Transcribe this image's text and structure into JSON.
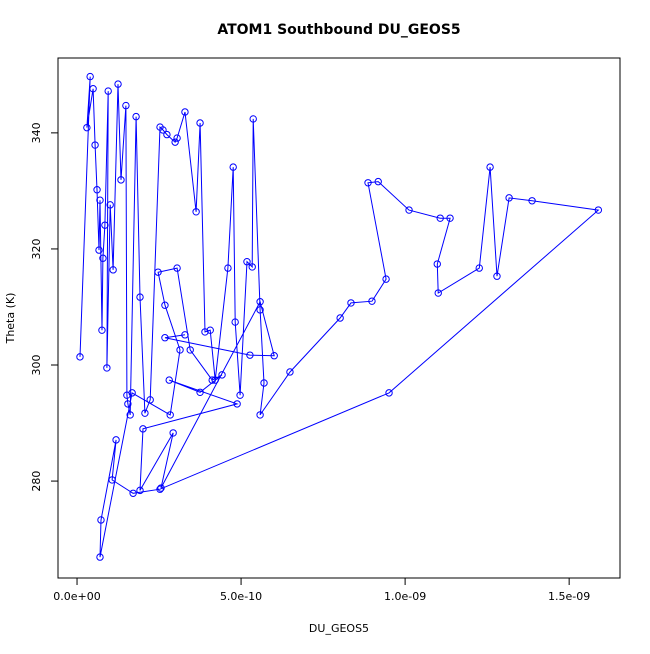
{
  "chart_data": {
    "type": "line",
    "title": "ATOM1 Southbound DU_GEOS5",
    "x_label": "DU_GEOS5",
    "y_label": "Theta (K)",
    "markers": "open-circle",
    "series": [
      {
        "color": "#0000ff",
        "x": [
          9e-12,
          4e-11,
          3e-11,
          4.9e-11,
          5.5e-11,
          6.1e-11,
          6.7e-11,
          7e-11,
          7.6e-11,
          7.9e-11,
          8.5e-11,
          9.5e-11,
          9.1e-11,
          1.01e-10,
          1.1e-10,
          1.25e-10,
          1.34e-10,
          1.49e-10,
          1.52e-10,
          1.55e-10,
          1.62e-10,
          1.8e-10,
          1.92e-10,
          2.07e-10,
          2.23e-10,
          2.53e-10,
          2.62e-10,
          2.74e-10,
          2.99e-10,
          3.05e-10,
          3.29e-10,
          3.63e-10,
          3.75e-10,
          3.9e-10,
          4.06e-10,
          4.21e-10,
          4.6e-10,
          4.76e-10,
          4.82e-10,
          4.97e-10,
          5.18e-10,
          5.34e-10,
          5.37e-10,
          5.58e-10,
          5.7e-10,
          5.58e-10,
          6.49e-10,
          8.02e-10,
          8.35e-10,
          8.99e-10,
          9.42e-10,
          8.87e-10,
          9.18e-10,
          1.012e-09,
          1.107e-09,
          1.137e-09,
          1.098e-09,
          1.101e-09,
          1.226e-09,
          1.259e-09,
          1.28e-09,
          1.317e-09,
          1.387e-09,
          1.589e-09,
          9.51e-10,
          2.53e-10,
          1.71e-10,
          1.07e-10,
          1.19e-10,
          7.3e-11,
          7e-11,
          1.68e-10,
          2.84e-10,
          3.14e-10,
          2.68e-10,
          2.47e-10,
          3.05e-10,
          3.45e-10,
          4.12e-10,
          4.42e-10,
          3.75e-10,
          2.81e-10,
          4.88e-10,
          2.01e-10,
          1.92e-10,
          2.93e-10,
          2.56e-10,
          5.58e-10,
          6.01e-10,
          5.27e-10,
          2.68e-10,
          3.29e-10
        ],
        "values": [
          301.4,
          349.7,
          340.9,
          347.6,
          337.9,
          330.2,
          319.8,
          328.4,
          306.0,
          318.4,
          324.1,
          347.2,
          299.5,
          327.6,
          316.4,
          348.4,
          331.9,
          344.7,
          294.8,
          293.3,
          291.4,
          342.8,
          311.7,
          291.7,
          294.0,
          341.0,
          340.5,
          339.7,
          338.4,
          339.1,
          343.6,
          326.4,
          341.7,
          305.7,
          306.0,
          297.4,
          316.7,
          334.1,
          307.4,
          294.8,
          317.8,
          316.9,
          342.4,
          309.5,
          296.9,
          291.4,
          298.8,
          308.1,
          310.7,
          311.0,
          314.8,
          331.4,
          331.6,
          326.7,
          325.3,
          325.3,
          317.4,
          312.4,
          316.7,
          334.1,
          315.3,
          328.8,
          328.3,
          326.7,
          295.2,
          278.6,
          277.9,
          280.2,
          287.1,
          273.3,
          266.9,
          295.2,
          291.4,
          302.6,
          310.3,
          316.0,
          316.7,
          302.6,
          297.4,
          298.3,
          295.3,
          297.4,
          293.3,
          289.0,
          278.4,
          288.3,
          278.8,
          310.9,
          301.6,
          301.7,
          304.7,
          305.2
        ]
      }
    ],
    "xlim": [
      -5.8e-11,
      1.655e-09
    ],
    "ylim": [
      263.3,
      352.9
    ],
    "xticks": [
      {
        "value": 0,
        "label": "0.0e+00"
      },
      {
        "value": 5e-10,
        "label": "5.0e-10"
      },
      {
        "value": 1e-09,
        "label": "1.0e-09"
      },
      {
        "value": 1.5e-09,
        "label": "1.5e-09"
      }
    ],
    "yticks": [
      280,
      300,
      320,
      340
    ]
  }
}
